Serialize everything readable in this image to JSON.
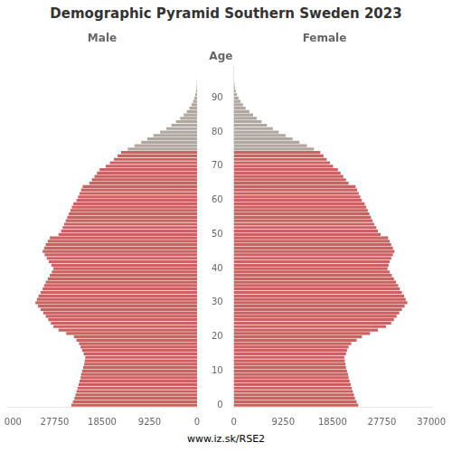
{
  "chart_data": {
    "type": "bar",
    "orientation": "horizontal",
    "title": "Demographic Pyramid Southern Sweden 2023",
    "ylabel": "Age",
    "annotations": [
      "www.iz.sk/RSE2"
    ],
    "grid": false,
    "categories": [
      "0",
      null,
      null,
      null,
      null,
      null,
      null,
      null,
      null,
      null,
      "10",
      null,
      null,
      null,
      null,
      null,
      null,
      null,
      null,
      null,
      "20",
      null,
      null,
      null,
      null,
      null,
      null,
      null,
      null,
      null,
      "30",
      null,
      null,
      null,
      null,
      null,
      null,
      null,
      null,
      null,
      "40",
      null,
      null,
      null,
      null,
      null,
      null,
      null,
      null,
      null,
      "50",
      null,
      null,
      null,
      null,
      null,
      null,
      null,
      null,
      null,
      "60",
      null,
      null,
      null,
      null,
      null,
      null,
      null,
      null,
      null,
      "70",
      null,
      null,
      null,
      null,
      null,
      null,
      null,
      null,
      null,
      "80",
      null,
      null,
      null,
      null,
      null,
      null,
      null,
      null,
      null,
      "90",
      null,
      null,
      null,
      null,
      null,
      null,
      null,
      null,
      null
    ],
    "xlim": [
      0,
      37000
    ],
    "xticks": [
      0,
      9250,
      18500,
      27750,
      37000
    ],
    "series": [
      {
        "name": "Male",
        "colors": [
          "#cd6060",
          "#cd6060",
          "#cd6060",
          "#cd6060",
          "#cd6060",
          "#cd6060",
          "#cd6060",
          "#cd6060",
          "#cd6060",
          "#cd6060",
          "#cd6060",
          "#cd6060",
          "#cd6060",
          "#cd6060",
          "#cd6060",
          "#cd6060",
          "#cd6060",
          "#cd6060",
          "#cd6060",
          "#cd6060",
          "#cd6060",
          "#cd6060",
          "#cd6060",
          "#cd6060",
          "#cd6060",
          "#cd6060",
          "#cd6060",
          "#cd6060",
          "#cd6060",
          "#cd6060",
          "#cd6060",
          "#cd6060",
          "#cd6060",
          "#cd6060",
          "#cd6060",
          "#cd6060",
          "#cd6060",
          "#cd6060",
          "#cd6060",
          "#cd6060",
          "#cd6060",
          "#cd6060",
          "#cd6060",
          "#cd6060",
          "#cd6060",
          "#cd6060",
          "#cd6060",
          "#cd6060",
          "#cd6060",
          "#cd6060",
          "#cd6060",
          "#cd6060",
          "#cd6060",
          "#cd6060",
          "#cd6060",
          "#cd6060",
          "#cd6060",
          "#cd6060",
          "#cd6060",
          "#cd6060",
          "#cd6060",
          "#cd6060",
          "#cd6060",
          "#cd6060",
          "#cd6060",
          "#cd6060",
          "#cd6060",
          "#cd6060",
          "#cd6060",
          "#cd6060",
          "#cd6060",
          "#cd6060",
          "#cd6060",
          "#cd6060",
          "#cd6060",
          "#b0a8a0",
          "#b0a8a0",
          "#b0a8a0",
          "#b0a8a0",
          "#b0a8a0",
          "#b0a8a0",
          "#b0a8a0",
          "#b0a8a0",
          "#b0a8a0",
          "#b0a8a0",
          "#b0a8a0",
          "#b0a8a0",
          "#b0a8a0",
          "#b0a8a0",
          "#b0a8a0",
          "#b0a8a0",
          "#b0a8a0",
          "#b0a8a0",
          "#b0a8a0",
          "#b0a8a0",
          "#b0a8a0",
          "#b0a8a0",
          "#b0a8a0",
          "#b0a8a0",
          "#b0a8a0"
        ],
        "values": [
          24500,
          24200,
          23900,
          23700,
          23500,
          23300,
          23100,
          22900,
          22700,
          22600,
          22400,
          22200,
          22000,
          21900,
          21800,
          22100,
          22400,
          22700,
          23000,
          23500,
          24000,
          25500,
          27000,
          28000,
          28500,
          29000,
          29500,
          30000,
          30500,
          31000,
          31500,
          31200,
          30900,
          30500,
          30100,
          29800,
          29500,
          29100,
          28700,
          28300,
          28000,
          28400,
          28900,
          29300,
          29700,
          30100,
          29800,
          29500,
          29100,
          28700,
          27000,
          26500,
          26200,
          25900,
          25600,
          25300,
          25000,
          24700,
          24400,
          24100,
          23500,
          23200,
          22900,
          22600,
          22300,
          21000,
          20500,
          20000,
          19500,
          19000,
          17800,
          17000,
          16200,
          15500,
          14800,
          13500,
          12200,
          10900,
          9700,
          8500,
          7200,
          6000,
          5000,
          4100,
          3300,
          2600,
          2000,
          1500,
          1100,
          780,
          520,
          340,
          210,
          120,
          65,
          30,
          12,
          5,
          2,
          1
        ]
      },
      {
        "name": "Female",
        "colors": [
          "#cd6060",
          "#cd6060",
          "#cd6060",
          "#cd6060",
          "#cd6060",
          "#cd6060",
          "#cd6060",
          "#cd6060",
          "#cd6060",
          "#cd6060",
          "#cd6060",
          "#cd6060",
          "#cd6060",
          "#cd6060",
          "#cd6060",
          "#cd6060",
          "#cd6060",
          "#cd6060",
          "#cd6060",
          "#cd6060",
          "#cd6060",
          "#cd6060",
          "#cd6060",
          "#cd6060",
          "#cd6060",
          "#cd6060",
          "#cd6060",
          "#cd6060",
          "#cd6060",
          "#cd6060",
          "#cd6060",
          "#cd6060",
          "#cd6060",
          "#cd6060",
          "#cd6060",
          "#cd6060",
          "#cd6060",
          "#cd6060",
          "#cd6060",
          "#cd6060",
          "#cd6060",
          "#cd6060",
          "#cd6060",
          "#cd6060",
          "#cd6060",
          "#cd6060",
          "#cd6060",
          "#cd6060",
          "#cd6060",
          "#cd6060",
          "#cd6060",
          "#cd6060",
          "#cd6060",
          "#cd6060",
          "#cd6060",
          "#cd6060",
          "#cd6060",
          "#cd6060",
          "#cd6060",
          "#cd6060",
          "#cd6060",
          "#cd6060",
          "#cd6060",
          "#cd6060",
          "#cd6060",
          "#cd6060",
          "#cd6060",
          "#cd6060",
          "#cd6060",
          "#cd6060",
          "#cd6060",
          "#cd6060",
          "#cd6060",
          "#cd6060",
          "#cd6060",
          "#b0a8a0",
          "#b0a8a0",
          "#b0a8a0",
          "#b0a8a0",
          "#b0a8a0",
          "#b0a8a0",
          "#b0a8a0",
          "#b0a8a0",
          "#b0a8a0",
          "#b0a8a0",
          "#b0a8a0",
          "#b0a8a0",
          "#b0a8a0",
          "#b0a8a0",
          "#b0a8a0",
          "#b0a8a0",
          "#b0a8a0",
          "#b0a8a0",
          "#b0a8a0",
          "#b0a8a0",
          "#b0a8a0",
          "#b0a8a0",
          "#b0a8a0",
          "#b0a8a0",
          "#b0a8a0"
        ],
        "values": [
          23300,
          23000,
          22700,
          22500,
          22300,
          22100,
          21900,
          21700,
          21500,
          21400,
          21200,
          21000,
          20900,
          20800,
          20700,
          21000,
          21200,
          21500,
          22000,
          23000,
          24000,
          25500,
          27000,
          28500,
          29500,
          30000,
          30500,
          31000,
          31500,
          32000,
          32500,
          32200,
          31900,
          31500,
          31100,
          30800,
          30400,
          30000,
          29600,
          29200,
          28800,
          29000,
          29200,
          29500,
          29800,
          30100,
          29800,
          29500,
          29200,
          28900,
          27500,
          27000,
          26700,
          26300,
          26000,
          25700,
          25400,
          25100,
          24800,
          24500,
          24000,
          23700,
          23400,
          23100,
          22800,
          21500,
          21000,
          20500,
          20000,
          19500,
          18600,
          18000,
          17400,
          16800,
          16200,
          15000,
          13700,
          12300,
          11000,
          9700,
          8400,
          7300,
          6200,
          5200,
          4300,
          3600,
          2900,
          2200,
          1700,
          1250,
          870,
          570,
          360,
          210,
          110,
          55,
          22,
          8,
          3,
          1
        ]
      }
    ]
  }
}
